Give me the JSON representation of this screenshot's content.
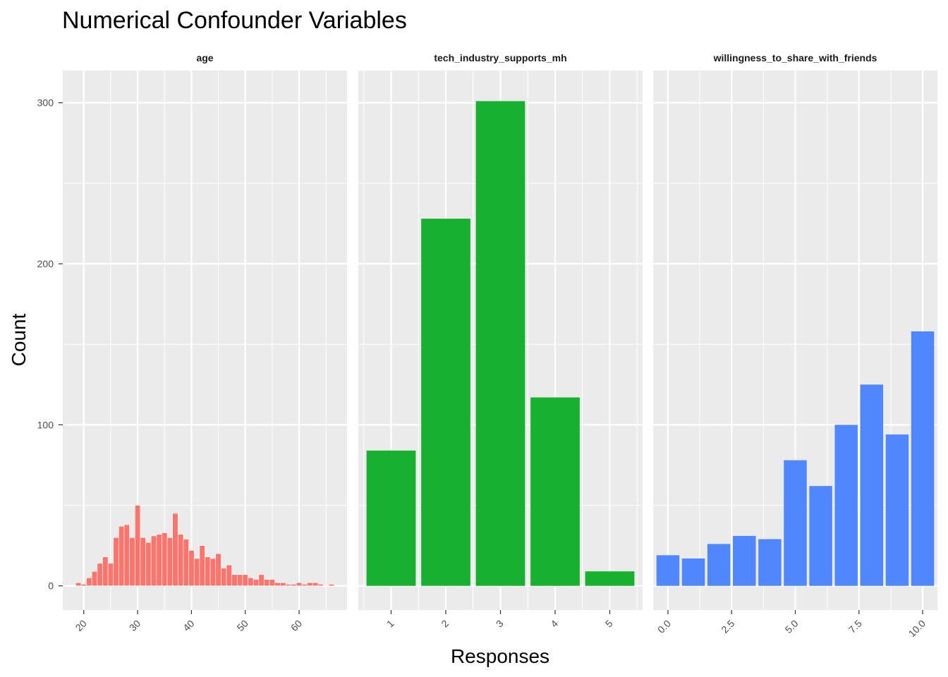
{
  "chart_data": {
    "type": "bar",
    "title": "Numerical Confounder Variables",
    "xlabel": "Responses",
    "ylabel": "Count",
    "ylim": [
      -15,
      320
    ],
    "y_ticks": [
      0,
      100,
      200,
      300
    ],
    "y_tick_labels": [
      "0",
      "100",
      "200",
      "300"
    ],
    "grid": true,
    "panels": [
      {
        "name": "age",
        "color": "#F8766D",
        "xlim": [
          16.1,
          68.9
        ],
        "x_ticks": [
          20,
          30,
          40,
          50,
          60
        ],
        "x_tick_labels": [
          "20",
          "30",
          "40",
          "50",
          "60"
        ],
        "bin_width": 1,
        "x": [
          19,
          20,
          21,
          22,
          23,
          24,
          25,
          26,
          27,
          28,
          29,
          30,
          31,
          32,
          33,
          34,
          35,
          36,
          37,
          38,
          39,
          40,
          41,
          42,
          43,
          44,
          45,
          46,
          47,
          48,
          49,
          50,
          51,
          52,
          53,
          54,
          55,
          56,
          57,
          58,
          59,
          60,
          61,
          62,
          63,
          64,
          65,
          66,
          67
        ],
        "values": [
          2,
          1,
          5,
          9,
          14,
          18,
          14,
          30,
          37,
          38,
          30,
          50,
          30,
          27,
          31,
          32,
          33,
          30,
          45,
          32,
          29,
          22,
          17,
          25,
          18,
          17,
          20,
          11,
          13,
          7,
          7,
          7,
          5,
          4,
          7,
          4,
          4,
          2,
          2,
          1,
          1,
          2,
          1,
          2,
          2,
          1,
          0,
          1,
          0
        ]
      },
      {
        "name": "tech_industry_supports_mh",
        "color": "#18B12F",
        "xlim": [
          0.4,
          5.6
        ],
        "x_ticks": [
          1,
          2,
          3,
          4,
          5
        ],
        "x_tick_labels": [
          "1",
          "2",
          "3",
          "4",
          "5"
        ],
        "bin_width": 0.9,
        "x": [
          1,
          2,
          3,
          4,
          5
        ],
        "values": [
          84,
          228,
          301,
          117,
          9
        ]
      },
      {
        "name": "willingness_to_share_with_friends",
        "color": "#5087FF",
        "xlim": [
          -0.58,
          10.58
        ],
        "x_ticks": [
          0,
          2.5,
          5,
          7.5,
          10
        ],
        "x_tick_labels": [
          "0.0",
          "2.5",
          "5.0",
          "7.5",
          "10.0"
        ],
        "bin_width": 0.9,
        "x": [
          0,
          1,
          2,
          3,
          4,
          5,
          6,
          7,
          8,
          9,
          10
        ],
        "values": [
          19,
          17,
          26,
          31,
          29,
          78,
          62,
          100,
          125,
          94,
          158
        ]
      }
    ]
  }
}
